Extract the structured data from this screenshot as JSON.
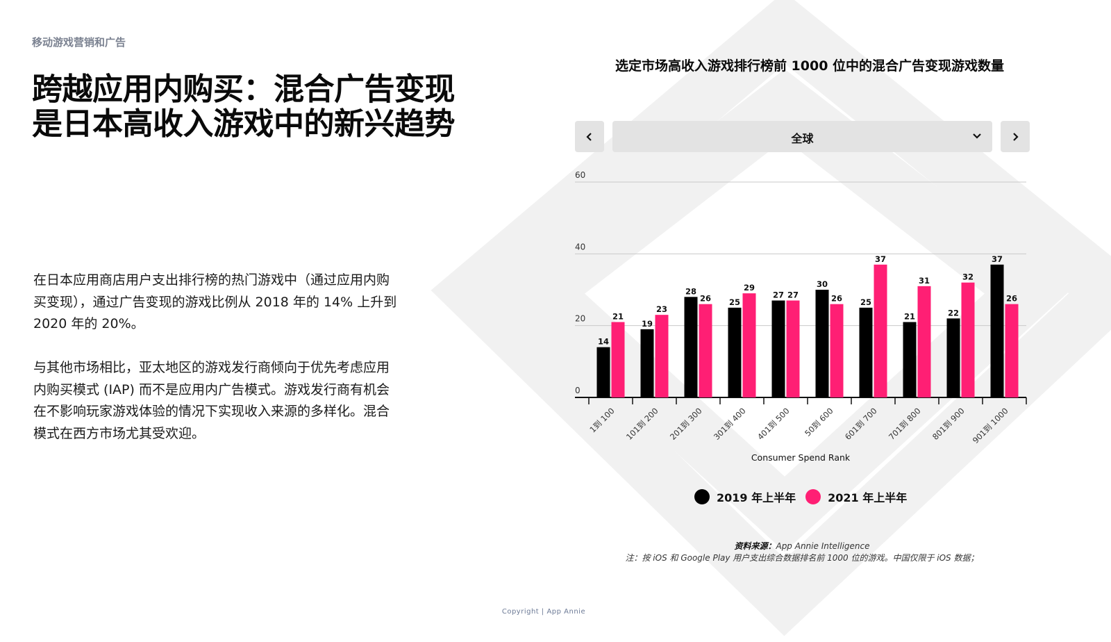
{
  "header": {
    "eyebrow": "移动游戏营销和广告",
    "headline": "跨越应用内购买：混合广告变现是日本高收入游戏中的新兴趋势"
  },
  "body": {
    "paragraph1": "在日本应用商店用户支出排行榜的热门游戏中（通过应用内购买变现），通过广告变现的游戏比例从 2018 年的 14% 上升到 2020 年的 20%。",
    "paragraph2": "与其他市场相比，亚太地区的游戏发行商倾向于优先考虑应用内购买模式 (IAP) 而不是应用内广告模式。游戏发行商有机会在不影响玩家游戏体验的情况下实现收入来源的多样化。混合模式在西方市场尤其受欢迎。"
  },
  "selector": {
    "value": "全球",
    "prev_icon": "chevron-left-icon",
    "next_icon": "chevron-right-icon",
    "dropdown_icon": "chevron-down-icon"
  },
  "colors": {
    "series_2019": "#000000",
    "series_2021": "#ff1f74",
    "grid": "#c9c9c9",
    "control_bg": "#e3e3e3",
    "muted_text": "#7b8291"
  },
  "chart_data": {
    "type": "bar",
    "title": "选定市场高收入游戏排行榜前 1000 位中的混合广告变现游戏数量",
    "xlabel": "Consumer Spend Rank",
    "ylabel": "",
    "ylim": [
      0,
      60
    ],
    "yticks": [
      0,
      20,
      40,
      60
    ],
    "grid": true,
    "legend_position": "bottom",
    "categories": [
      "1到 100",
      "101到 200",
      "201到 300",
      "301到 400",
      "401到 500",
      "50到 600",
      "601到 700",
      "701到 800",
      "801到 900",
      "901到 1000"
    ],
    "series": [
      {
        "name": "2019 年上半年",
        "values": [
          14,
          19,
          28,
          25,
          27,
          30,
          25,
          21,
          22,
          37
        ]
      },
      {
        "name": "2021 年上半年",
        "values": [
          21,
          23,
          26,
          29,
          27,
          26,
          37,
          31,
          32,
          26
        ]
      }
    ]
  },
  "footer": {
    "source_title": "资料来源：",
    "source_text": "App Annie Intelligence",
    "note": "注：按 iOS 和 Google Play 用户支出综合数据排名前 1000 位的游戏。中国仅限于 iOS 数据；",
    "copyright": "Copyright | App Annie"
  }
}
